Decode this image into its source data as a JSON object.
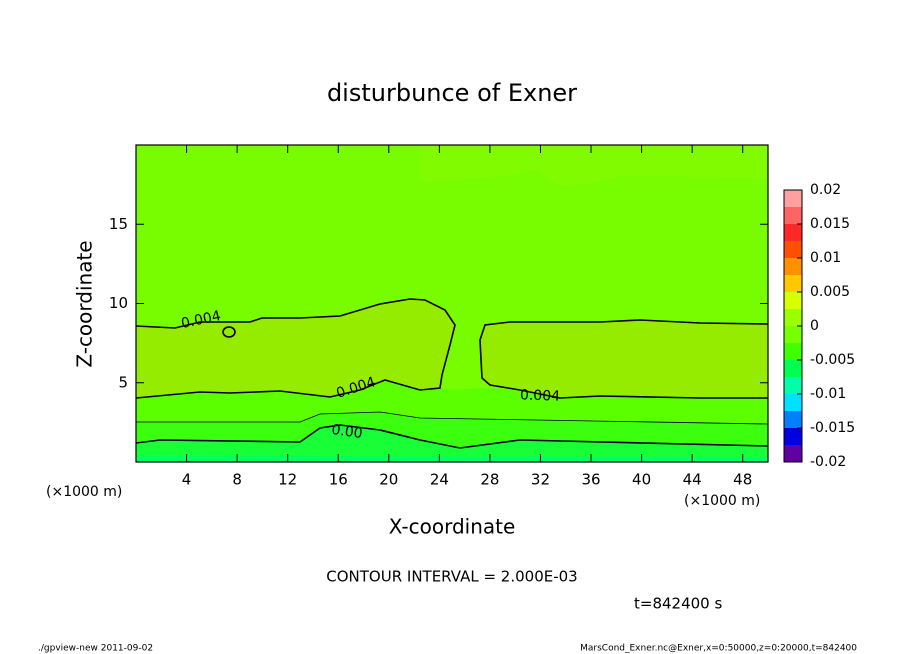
{
  "chart_data": {
    "type": "contour",
    "title": "disturbunce of Exner",
    "xlabel": "X-coordinate",
    "ylabel": "Z-coordinate",
    "xunit": "(×1000 m)",
    "xlim": [
      0,
      50
    ],
    "ylim": [
      0,
      20
    ],
    "xticks": [
      4,
      8,
      12,
      16,
      20,
      24,
      28,
      32,
      36,
      40,
      44,
      48
    ],
    "yticks": [
      5,
      10,
      15
    ],
    "colorbar": {
      "ticks": [
        0.02,
        0.015,
        0.01,
        0.005,
        0,
        -0.005,
        -0.01,
        -0.015,
        -0.02
      ],
      "colors": [
        "#ffa0a0",
        "#ff6464",
        "#ff2828",
        "#ff5000",
        "#ff9000",
        "#ffc800",
        "#d8ff00",
        "#9cff00",
        "#78ff00",
        "#40ff00",
        "#00ff50",
        "#00ffa8",
        "#00e0ff",
        "#0080ff",
        "#0000e0",
        "#6000a0"
      ]
    },
    "contour_labels": [
      0.004,
      0.004,
      0.004,
      {
        "value": 0.002,
        "label": "0.00"
      }
    ],
    "contour_interval": "CONTOUR INTERVAL = 2.000E-03",
    "time": "t=842400 s",
    "footer_left": "./gpview-new  2011-09-02",
    "footer_right": "MarsCond_Exner.nc@Exner,x=0:50000,z=0:20000,t=842400"
  }
}
